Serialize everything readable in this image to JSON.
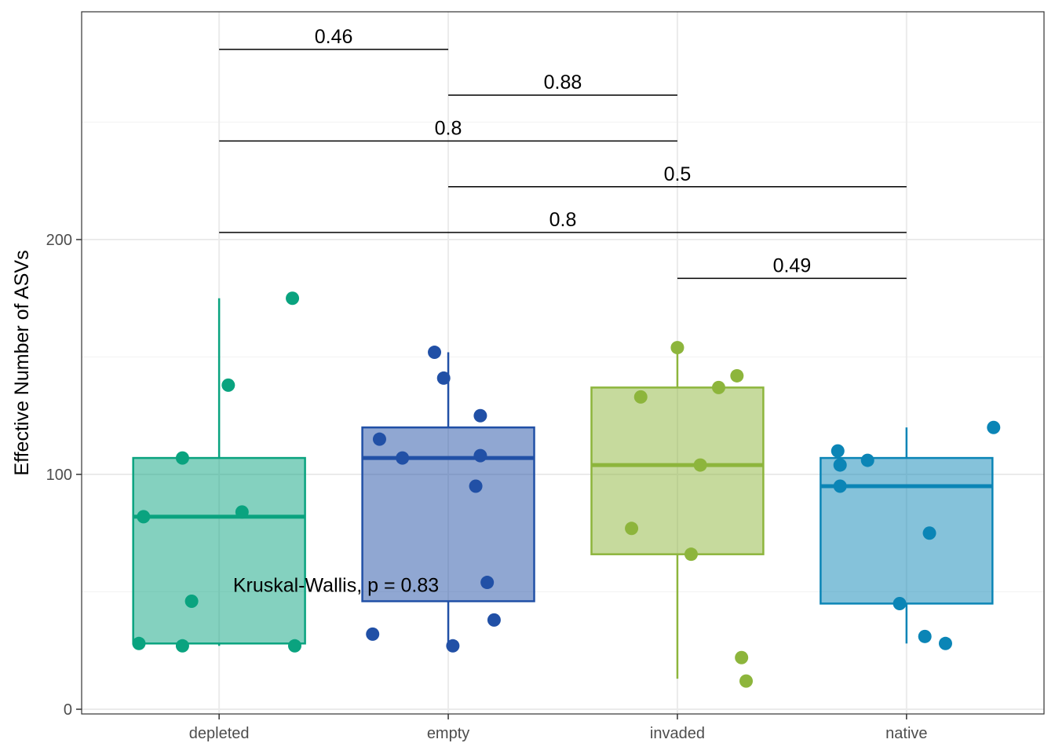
{
  "chart_data": {
    "type": "box",
    "title": "",
    "xlabel": "",
    "ylabel": "Effective Number of ASVs",
    "ylim": [
      -2,
      297
    ],
    "yticks": [
      0,
      100,
      200
    ],
    "grid": true,
    "legend": "none",
    "categories": [
      "depleted",
      "empty",
      "invaded",
      "native"
    ],
    "colors": [
      "#0aa37f",
      "#2150a6",
      "#8db53c",
      "#0b85b6"
    ],
    "boxes": [
      {
        "category": "depleted",
        "q1": 28,
        "median": 82,
        "q3": 107,
        "whisker_low": 27,
        "whisker_high": 175,
        "points": [
          {
            "x": -0.35,
            "y": 28
          },
          {
            "x": -0.33,
            "y": 82
          },
          {
            "x": -0.16,
            "y": 27
          },
          {
            "x": -0.16,
            "y": 107
          },
          {
            "x": -0.12,
            "y": 46
          },
          {
            "x": 0.04,
            "y": 138
          },
          {
            "x": 0.1,
            "y": 84
          },
          {
            "x": 0.32,
            "y": 175
          },
          {
            "x": 0.33,
            "y": 27
          }
        ]
      },
      {
        "category": "empty",
        "q1": 46,
        "median": 107,
        "q3": 120,
        "whisker_low": 27,
        "whisker_high": 152,
        "points": [
          {
            "x": -0.33,
            "y": 32
          },
          {
            "x": -0.3,
            "y": 115
          },
          {
            "x": -0.2,
            "y": 107
          },
          {
            "x": -0.06,
            "y": 152
          },
          {
            "x": -0.02,
            "y": 141
          },
          {
            "x": 0.02,
            "y": 27
          },
          {
            "x": 0.12,
            "y": 95
          },
          {
            "x": 0.14,
            "y": 125
          },
          {
            "x": 0.14,
            "y": 108
          },
          {
            "x": 0.17,
            "y": 54
          },
          {
            "x": 0.2,
            "y": 38
          }
        ]
      },
      {
        "category": "invaded",
        "q1": 66,
        "median": 104,
        "q3": 137,
        "whisker_low": 13,
        "whisker_high": 154,
        "points": [
          {
            "x": -0.2,
            "y": 77
          },
          {
            "x": -0.16,
            "y": 133
          },
          {
            "x": 0.0,
            "y": 154
          },
          {
            "x": 0.06,
            "y": 66
          },
          {
            "x": 0.1,
            "y": 104
          },
          {
            "x": 0.18,
            "y": 137
          },
          {
            "x": 0.26,
            "y": 142
          },
          {
            "x": 0.28,
            "y": 22
          },
          {
            "x": 0.3,
            "y": 12
          }
        ]
      },
      {
        "category": "native",
        "q1": 45,
        "median": 95,
        "q3": 107,
        "whisker_low": 28,
        "whisker_high": 120,
        "points": [
          {
            "x": -0.3,
            "y": 110
          },
          {
            "x": -0.29,
            "y": 104
          },
          {
            "x": -0.29,
            "y": 95
          },
          {
            "x": -0.17,
            "y": 106
          },
          {
            "x": -0.03,
            "y": 45
          },
          {
            "x": 0.08,
            "y": 31
          },
          {
            "x": 0.1,
            "y": 75
          },
          {
            "x": 0.17,
            "y": 28
          },
          {
            "x": 0.38,
            "y": 120
          }
        ]
      }
    ],
    "comparisons": [
      {
        "from": "depleted",
        "to": "empty",
        "y": 281,
        "label": "0.46"
      },
      {
        "from": "empty",
        "to": "invaded",
        "y": 261.5,
        "label": "0.88"
      },
      {
        "from": "depleted",
        "to": "invaded",
        "y": 242,
        "label": "0.8"
      },
      {
        "from": "empty",
        "to": "native",
        "y": 222.5,
        "label": "0.5"
      },
      {
        "from": "depleted",
        "to": "native",
        "y": 203,
        "label": "0.8"
      },
      {
        "from": "invaded",
        "to": "native",
        "y": 183.5,
        "label": "0.49"
      }
    ],
    "annotation": {
      "text": "Kruskal-Wallis, p = 0.83",
      "x_category": "depleted",
      "x_offset": 0.51,
      "y": 53
    }
  }
}
